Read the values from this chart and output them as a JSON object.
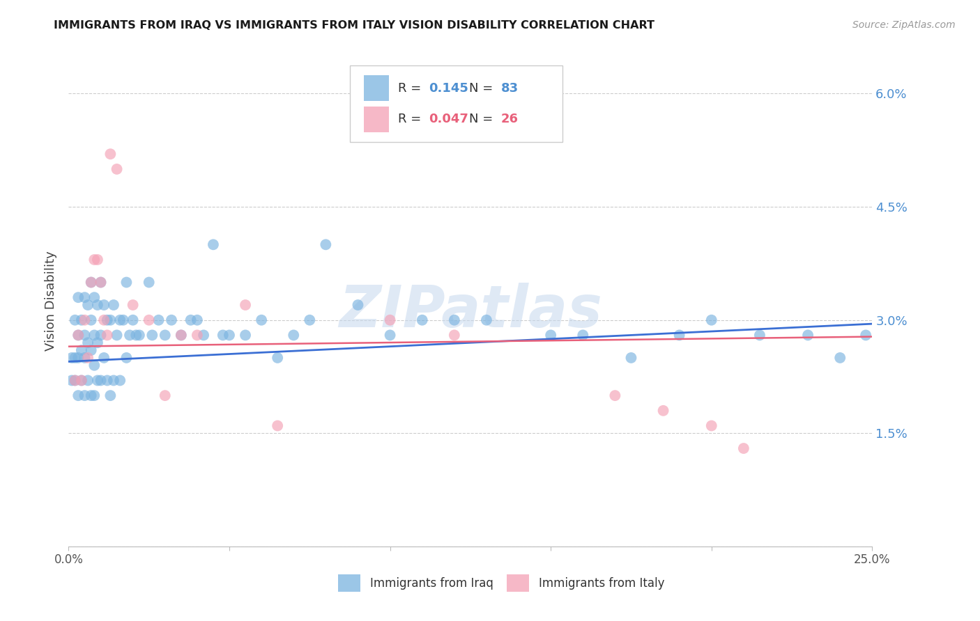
{
  "title": "IMMIGRANTS FROM IRAQ VS IMMIGRANTS FROM ITALY VISION DISABILITY CORRELATION CHART",
  "source": "Source: ZipAtlas.com",
  "ylabel": "Vision Disability",
  "yticks": [
    0.0,
    0.015,
    0.03,
    0.045,
    0.06
  ],
  "ytick_labels": [
    "",
    "1.5%",
    "3.0%",
    "4.5%",
    "6.0%"
  ],
  "xlim": [
    0.0,
    0.25
  ],
  "ylim": [
    0.0,
    0.065
  ],
  "legend_iraq_R": "0.145",
  "legend_iraq_N": "83",
  "legend_italy_R": "0.047",
  "legend_italy_N": "26",
  "iraq_color": "#7ab3e0",
  "italy_color": "#f4a0b5",
  "iraq_line_color": "#3b6fd4",
  "italy_line_color": "#e8607a",
  "watermark": "ZIPatlas",
  "iraq_x": [
    0.001,
    0.001,
    0.002,
    0.002,
    0.002,
    0.003,
    0.003,
    0.003,
    0.003,
    0.004,
    0.004,
    0.004,
    0.005,
    0.005,
    0.005,
    0.005,
    0.006,
    0.006,
    0.006,
    0.007,
    0.007,
    0.007,
    0.007,
    0.008,
    0.008,
    0.008,
    0.008,
    0.009,
    0.009,
    0.009,
    0.01,
    0.01,
    0.01,
    0.011,
    0.011,
    0.012,
    0.012,
    0.013,
    0.013,
    0.014,
    0.014,
    0.015,
    0.016,
    0.016,
    0.017,
    0.018,
    0.018,
    0.019,
    0.02,
    0.021,
    0.022,
    0.025,
    0.026,
    0.028,
    0.03,
    0.032,
    0.035,
    0.038,
    0.04,
    0.042,
    0.045,
    0.048,
    0.05,
    0.055,
    0.06,
    0.065,
    0.07,
    0.075,
    0.08,
    0.09,
    0.1,
    0.11,
    0.12,
    0.13,
    0.15,
    0.16,
    0.175,
    0.19,
    0.2,
    0.215,
    0.23,
    0.24,
    0.248
  ],
  "iraq_y": [
    0.025,
    0.022,
    0.03,
    0.025,
    0.022,
    0.033,
    0.028,
    0.025,
    0.02,
    0.03,
    0.026,
    0.022,
    0.033,
    0.028,
    0.025,
    0.02,
    0.032,
    0.027,
    0.022,
    0.035,
    0.03,
    0.026,
    0.02,
    0.033,
    0.028,
    0.024,
    0.02,
    0.032,
    0.027,
    0.022,
    0.035,
    0.028,
    0.022,
    0.032,
    0.025,
    0.03,
    0.022,
    0.03,
    0.02,
    0.032,
    0.022,
    0.028,
    0.03,
    0.022,
    0.03,
    0.035,
    0.025,
    0.028,
    0.03,
    0.028,
    0.028,
    0.035,
    0.028,
    0.03,
    0.028,
    0.03,
    0.028,
    0.03,
    0.03,
    0.028,
    0.04,
    0.028,
    0.028,
    0.028,
    0.03,
    0.025,
    0.028,
    0.03,
    0.04,
    0.032,
    0.028,
    0.03,
    0.03,
    0.03,
    0.028,
    0.028,
    0.025,
    0.028,
    0.03,
    0.028,
    0.028,
    0.025,
    0.028
  ],
  "italy_x": [
    0.002,
    0.003,
    0.004,
    0.005,
    0.006,
    0.007,
    0.008,
    0.009,
    0.01,
    0.011,
    0.012,
    0.013,
    0.015,
    0.02,
    0.025,
    0.03,
    0.035,
    0.04,
    0.055,
    0.065,
    0.1,
    0.12,
    0.17,
    0.185,
    0.2,
    0.21
  ],
  "italy_y": [
    0.022,
    0.028,
    0.022,
    0.03,
    0.025,
    0.035,
    0.038,
    0.038,
    0.035,
    0.03,
    0.028,
    0.052,
    0.05,
    0.032,
    0.03,
    0.02,
    0.028,
    0.028,
    0.032,
    0.016,
    0.03,
    0.028,
    0.02,
    0.018,
    0.016,
    0.013
  ],
  "iraq_line_x0": 0.0,
  "iraq_line_y0": 0.0245,
  "iraq_line_x1": 0.25,
  "iraq_line_y1": 0.0295,
  "italy_line_x0": 0.0,
  "italy_line_y0": 0.0265,
  "italy_line_x1": 0.25,
  "italy_line_y1": 0.0278
}
